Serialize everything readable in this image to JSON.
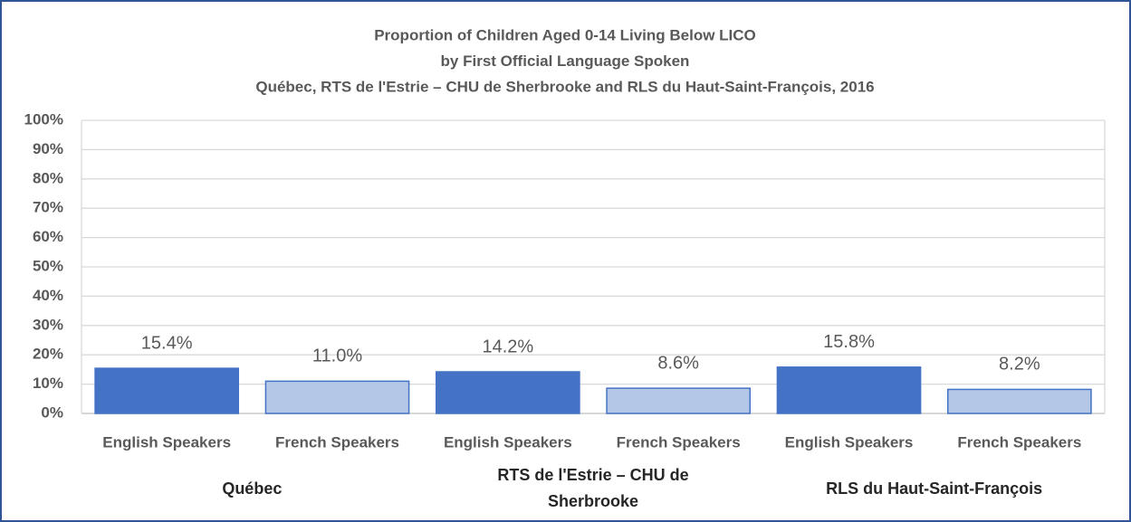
{
  "chart_data": {
    "type": "bar",
    "title": [
      "Proportion of Children Aged 0-14 Living Below LICO",
      "by First Official Language Spoken",
      "Québec, RTS de l'Estrie – CHU de Sherbrooke and RLS du Haut-Saint-François, 2016"
    ],
    "groups": [
      "Québec",
      "RTS de l'Estrie – CHU de Sherbrooke",
      "RLS du Haut-Saint-François"
    ],
    "categories": [
      "English Speakers",
      "French Speakers",
      "English Speakers",
      "French Speakers",
      "English Speakers",
      "French Speakers"
    ],
    "values": [
      15.4,
      11.0,
      14.2,
      8.6,
      15.8,
      8.2
    ],
    "value_labels": [
      "15.4%",
      "11.0%",
      "14.2%",
      "8.6%",
      "15.8%",
      "8.2%"
    ],
    "colors": [
      "#4472c4",
      "#b4c7e7",
      "#4472c4",
      "#b4c7e7",
      "#4472c4",
      "#b4c7e7"
    ],
    "ylim": [
      0,
      100
    ],
    "yticks": [
      {
        "value": 0,
        "label": "0%"
      },
      {
        "value": 10,
        "label": "10%"
      },
      {
        "value": 20,
        "label": "20%"
      },
      {
        "value": 30,
        "label": "30%"
      },
      {
        "value": 40,
        "label": "40%"
      },
      {
        "value": 50,
        "label": "50%"
      },
      {
        "value": 60,
        "label": "60%"
      },
      {
        "value": 70,
        "label": "70%"
      },
      {
        "value": 80,
        "label": "80%"
      },
      {
        "value": 90,
        "label": "90%"
      },
      {
        "value": 100,
        "label": "100%"
      }
    ],
    "grid": true
  }
}
